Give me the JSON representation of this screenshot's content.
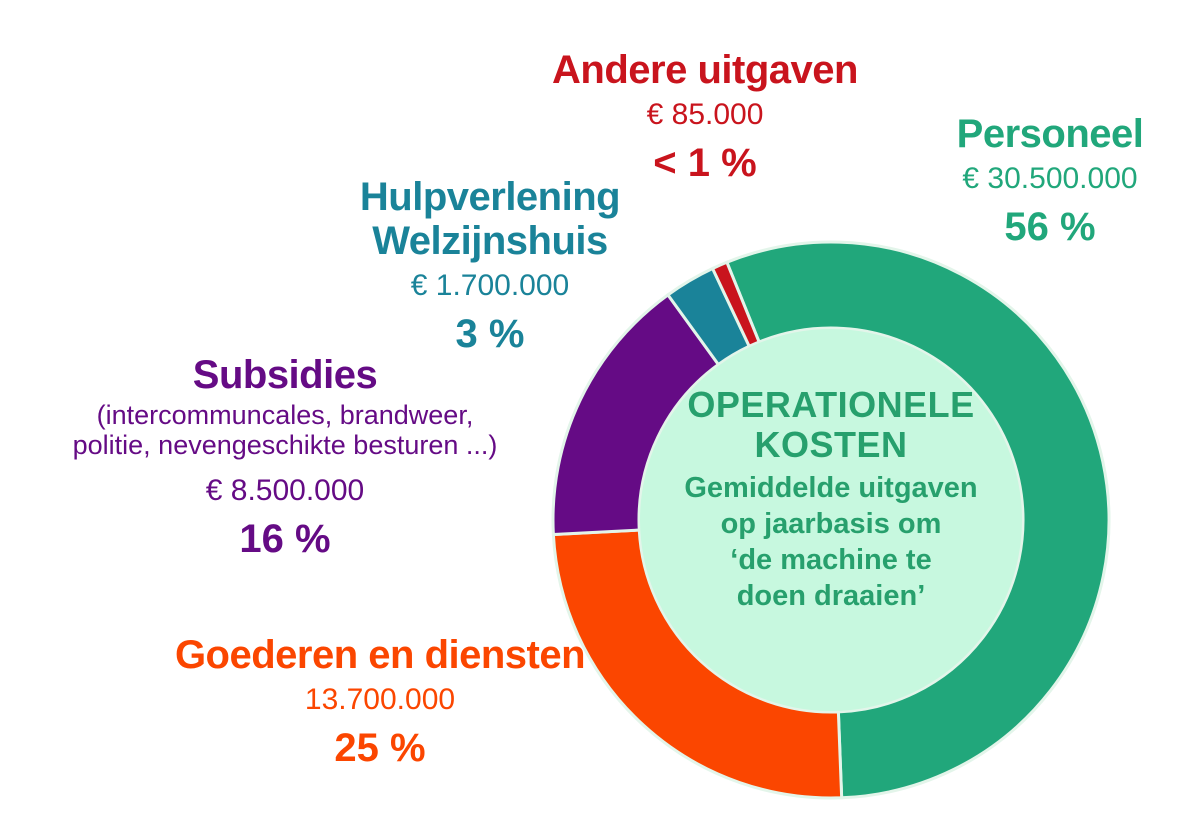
{
  "chart_data": {
    "type": "pie",
    "donut": true,
    "center": {
      "title_lines": [
        "OPERATIONELE",
        "KOSTEN"
      ],
      "subtitle_lines": [
        "Gemiddelde uitgaven",
        "op jaarbasis om",
        "‘de machine te",
        "doen draaien’"
      ]
    },
    "slices": [
      {
        "name": "Personeel",
        "amount": "€ 30.500.000",
        "percent_label": "56 %",
        "value": 56,
        "color": "#21a77b"
      },
      {
        "name": "Goederen en diensten",
        "amount": "13.700.000",
        "percent_label": "25 %",
        "value": 25,
        "color": "#fb4600"
      },
      {
        "name": "Subsidies",
        "note_lines": [
          "(intercommuncales, brandweer,",
          "politie, nevengeschikte besturen ...)"
        ],
        "amount": "€ 8.500.000",
        "percent_label": "16 %",
        "value": 16,
        "color": "#650b85"
      },
      {
        "name_lines": [
          "Hulpverlening",
          "Welzijnshuis"
        ],
        "amount": "€ 1.700.000",
        "percent_label": "3 %",
        "value": 3,
        "color": "#1a8399"
      },
      {
        "name": "Andere uitgaven",
        "amount": "€ 85.000",
        "percent_label": "< 1 %",
        "value": 0.9,
        "color": "#c9141d"
      }
    ],
    "inner_color": "#c7f8df",
    "separator_color": "#e3f5ea"
  }
}
